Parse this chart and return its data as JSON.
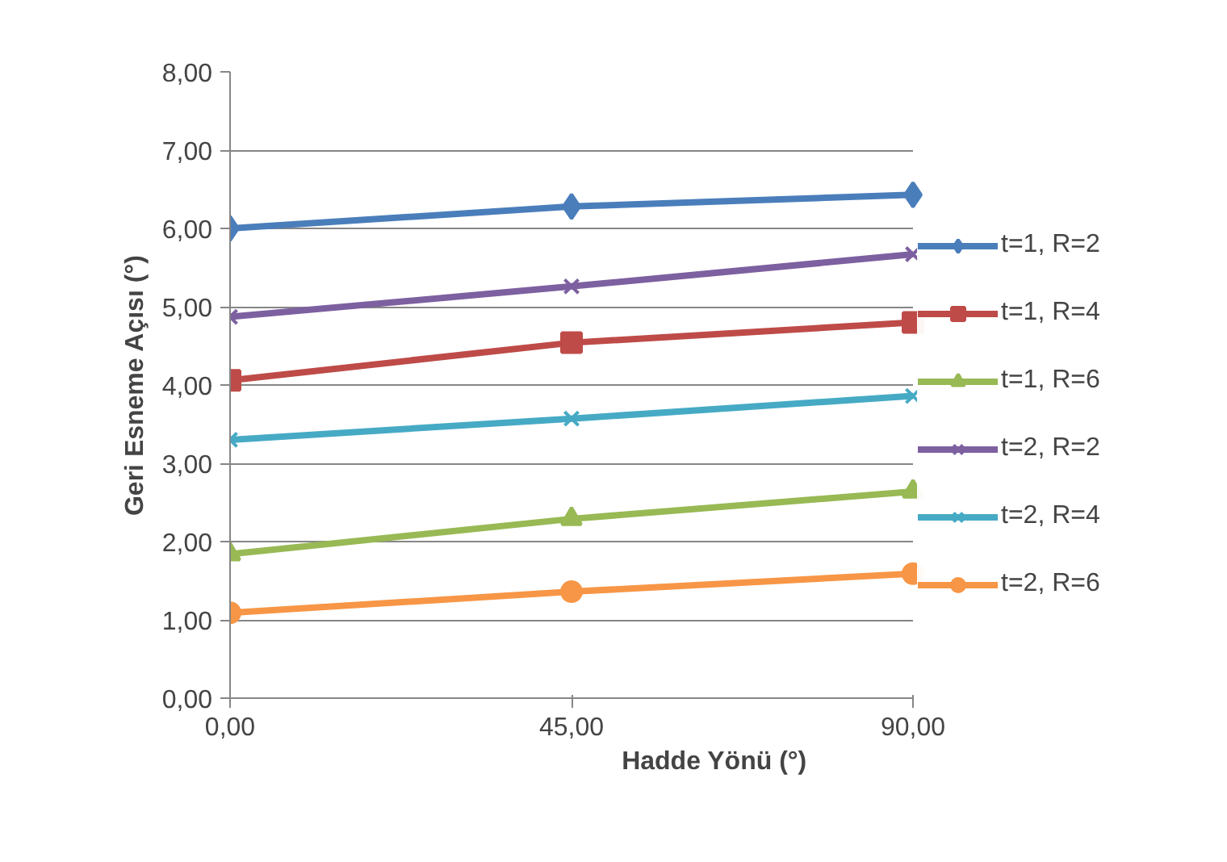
{
  "chart_data": {
    "type": "line",
    "xlabel": "Hadde Yönü (°)",
    "ylabel": "Geri Esneme Açısı (°)",
    "x": [
      0,
      45,
      90
    ],
    "xlim": [
      0,
      90
    ],
    "xticks": [
      {
        "value": 0,
        "label": "0,00"
      },
      {
        "value": 45,
        "label": "45,00"
      },
      {
        "value": 90,
        "label": "90,00"
      }
    ],
    "ylim": [
      0,
      8
    ],
    "yticks": [
      {
        "value": 0,
        "label": "0,00"
      },
      {
        "value": 1,
        "label": "1,00"
      },
      {
        "value": 2,
        "label": "2,00"
      },
      {
        "value": 3,
        "label": "3,00"
      },
      {
        "value": 4,
        "label": "4,00"
      },
      {
        "value": 5,
        "label": "5,00"
      },
      {
        "value": 6,
        "label": "6,00"
      },
      {
        "value": 7,
        "label": "7,00"
      },
      {
        "value": 8,
        "label": "8,00"
      }
    ],
    "grid": "y",
    "legend": "right",
    "line_style": "solid",
    "series": [
      {
        "name": "t=1, R=2",
        "color": "#4a7ebb",
        "marker": "diamond",
        "values": [
          6.0,
          6.28,
          6.43
        ]
      },
      {
        "name": "t=1, R=4",
        "color": "#be4b48",
        "marker": "square",
        "values": [
          4.06,
          4.54,
          4.8
        ]
      },
      {
        "name": "t=1, R=6",
        "color": "#98b954",
        "marker": "triangle",
        "values": [
          1.84,
          2.29,
          2.64
        ]
      },
      {
        "name": "t=2, R=2",
        "color": "#7d60a0",
        "marker": "cross",
        "values": [
          4.87,
          5.26,
          5.67
        ]
      },
      {
        "name": "t=2, R=4",
        "color": "#46aac5",
        "marker": "cross",
        "values": [
          3.3,
          3.57,
          3.86
        ]
      },
      {
        "name": "t=2, R=6",
        "color": "#f79646",
        "marker": "circle",
        "values": [
          1.09,
          1.36,
          1.59
        ]
      }
    ]
  }
}
